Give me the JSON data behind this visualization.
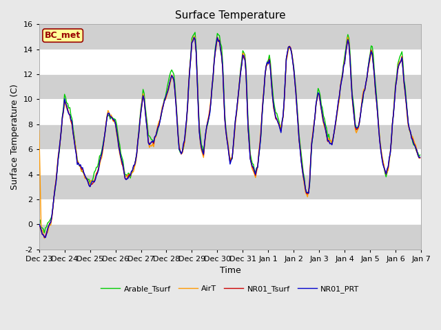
{
  "title": "Surface Temperature",
  "ylabel": "Surface Temperature (C)",
  "xlabel": "Time",
  "annotation": "BC_met",
  "ylim": [
    -2,
    16
  ],
  "yticks": [
    -2,
    0,
    2,
    4,
    6,
    8,
    10,
    12,
    14,
    16
  ],
  "xtick_labels": [
    "Dec 23",
    "Dec 24",
    "Dec 25",
    "Dec 26",
    "Dec 27",
    "Dec 28",
    "Dec 29",
    "Dec 30",
    "Dec 31",
    "Jan 1",
    "Jan 2",
    "Jan 3",
    "Jan 4",
    "Jan 5",
    "Jan 6",
    "Jan 7"
  ],
  "series_colors": [
    "#cc0000",
    "#0000cc",
    "#00cc00",
    "#ff9900"
  ],
  "series_labels": [
    "NR01_Tsurf",
    "NR01_PRT",
    "Arable_Tsurf",
    "AirT"
  ],
  "line_width": 1.0,
  "bg_color": "#e8e8e8",
  "plot_bg": "#ffffff",
  "band_color": "#d0d0d0",
  "title_fontsize": 11,
  "label_fontsize": 9,
  "tick_fontsize": 8,
  "legend_fontsize": 8,
  "annotation_fontsize": 9,
  "annotation_bg": "#ffff99",
  "annotation_border": "#990000"
}
